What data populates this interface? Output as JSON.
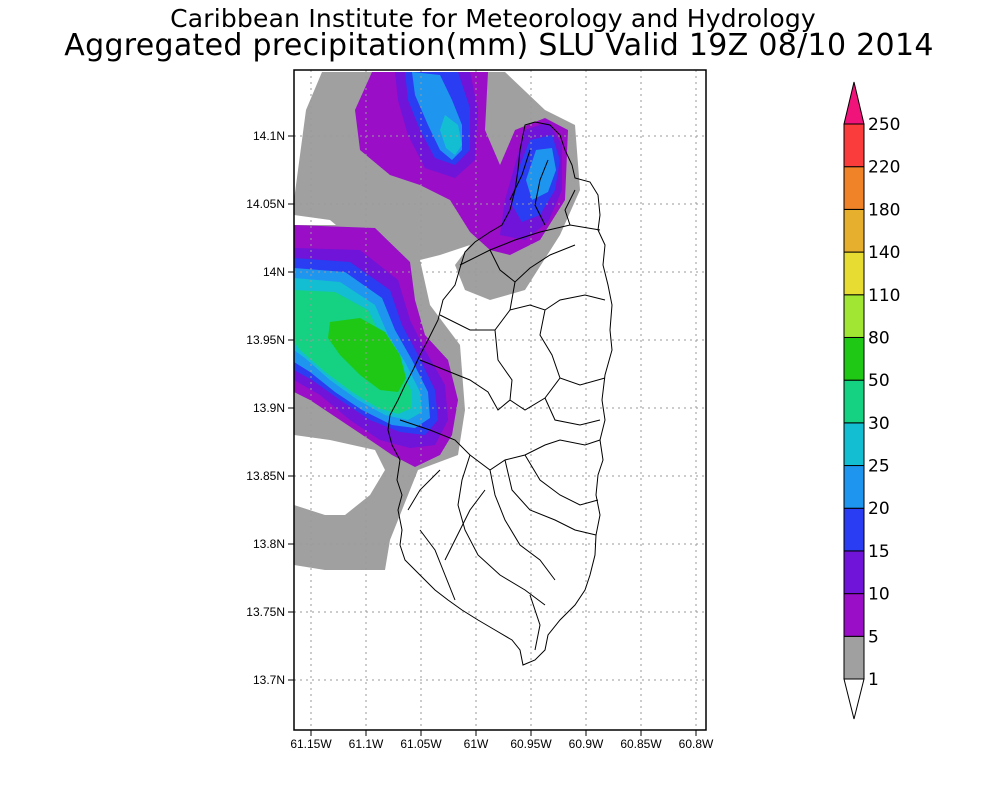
{
  "title": {
    "line1": "Caribbean Institute for Meteorology and Hydrology",
    "line2": "Aggregated precipitation(mm) SLU Valid 19Z 08/10 2014"
  },
  "axes": {
    "lat_labels": [
      "14.1N",
      "14.05N",
      "14N",
      "13.95N",
      "13.9N",
      "13.85N",
      "13.8N",
      "13.75N",
      "13.7N"
    ],
    "lon_labels": [
      "61.15W",
      "61.1W",
      "61.05W",
      "61W",
      "60.95W",
      "60.9W",
      "60.85W",
      "60.8W"
    ]
  },
  "colorbar": {
    "levels": [
      "1",
      "5",
      "10",
      "15",
      "20",
      "25",
      "30",
      "50",
      "80",
      "110",
      "140",
      "180",
      "220",
      "250"
    ],
    "colors": [
      "#ffffff",
      "#a0a0a0",
      "#9a0ec8",
      "#6f14d8",
      "#2a3df2",
      "#1e96f0",
      "#14bed2",
      "#14d282",
      "#1ec814",
      "#a0e632",
      "#e6dc32",
      "#e6af2d",
      "#f08228",
      "#fa3c3c",
      "#f0147a"
    ]
  }
}
